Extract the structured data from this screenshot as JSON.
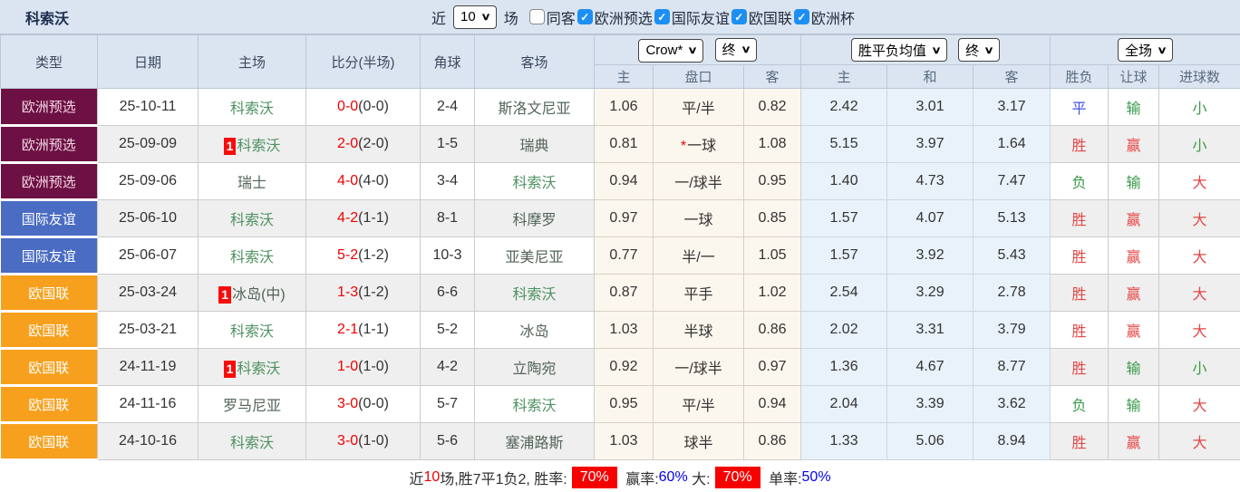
{
  "header": {
    "title": "科索沃",
    "near_label": "近",
    "matches_count": "10",
    "matches_label": "场",
    "checkboxes": [
      {
        "label": "同客",
        "checked": false
      },
      {
        "label": "欧洲预选",
        "checked": true
      },
      {
        "label": "国际友谊",
        "checked": true
      },
      {
        "label": "欧国联",
        "checked": true
      },
      {
        "label": "欧洲杯",
        "checked": true
      }
    ]
  },
  "table": {
    "columns": [
      "类型",
      "日期",
      "主场",
      "比分(半场)",
      "角球",
      "客场"
    ],
    "selects": {
      "company": "Crow*",
      "company_time": "终",
      "avg": "胜平负均值",
      "avg_time": "终",
      "scope": "全场"
    },
    "sub_columns": [
      "主",
      "盘口",
      "客",
      "主",
      "和",
      "客",
      "胜负",
      "让球",
      "进球数"
    ],
    "rows": [
      {
        "type": "欧洲预选",
        "league": "purple",
        "date": "25-10-11",
        "home": "科索沃",
        "home_kosovo": true,
        "home_badge": "",
        "score": "0-0",
        "half": "(0-0)",
        "corners": "2-4",
        "away": "斯洛文尼亚",
        "away_kosovo": false,
        "odds_home": "1.06",
        "handicap": "平/半",
        "handicap_star": false,
        "odds_away": "0.82",
        "avg_home": "2.42",
        "avg_draw": "3.01",
        "avg_away": "3.17",
        "result": "平",
        "result_color": "blue",
        "hresult": "输",
        "hresult_color": "green",
        "goals": "小",
        "goals_color": "green"
      },
      {
        "type": "欧洲预选",
        "league": "purple",
        "date": "25-09-09",
        "home": "科索沃",
        "home_kosovo": true,
        "home_badge": "1",
        "score": "2-0",
        "half": "(2-0)",
        "corners": "1-5",
        "away": "瑞典",
        "away_kosovo": false,
        "odds_home": "0.81",
        "handicap": "一球",
        "handicap_star": true,
        "odds_away": "1.08",
        "avg_home": "5.15",
        "avg_draw": "3.97",
        "avg_away": "1.64",
        "result": "胜",
        "result_color": "red",
        "hresult": "赢",
        "hresult_color": "red",
        "goals": "小",
        "goals_color": "green"
      },
      {
        "type": "欧洲预选",
        "league": "purple",
        "date": "25-09-06",
        "home": "瑞士",
        "home_kosovo": false,
        "home_badge": "",
        "score": "4-0",
        "half": "(4-0)",
        "corners": "3-4",
        "away": "科索沃",
        "away_kosovo": true,
        "odds_home": "0.94",
        "handicap": "一/球半",
        "handicap_star": false,
        "odds_away": "0.95",
        "avg_home": "1.40",
        "avg_draw": "4.73",
        "avg_away": "7.47",
        "result": "负",
        "result_color": "green",
        "hresult": "输",
        "hresult_color": "green",
        "goals": "大",
        "goals_color": "red"
      },
      {
        "type": "国际友谊",
        "league": "blue",
        "date": "25-06-10",
        "home": "科索沃",
        "home_kosovo": true,
        "home_badge": "",
        "score": "4-2",
        "half": "(1-1)",
        "corners": "8-1",
        "away": "科摩罗",
        "away_kosovo": false,
        "odds_home": "0.97",
        "handicap": "一球",
        "handicap_star": false,
        "odds_away": "0.85",
        "avg_home": "1.57",
        "avg_draw": "4.07",
        "avg_away": "5.13",
        "result": "胜",
        "result_color": "red",
        "hresult": "赢",
        "hresult_color": "red",
        "goals": "大",
        "goals_color": "red"
      },
      {
        "type": "国际友谊",
        "league": "blue",
        "date": "25-06-07",
        "home": "科索沃",
        "home_kosovo": true,
        "home_badge": "",
        "score": "5-2",
        "half": "(1-2)",
        "corners": "10-3",
        "away": "亚美尼亚",
        "away_kosovo": false,
        "odds_home": "0.77",
        "handicap": "半/一",
        "handicap_star": false,
        "odds_away": "1.05",
        "avg_home": "1.57",
        "avg_draw": "3.92",
        "avg_away": "5.43",
        "result": "胜",
        "result_color": "red",
        "hresult": "赢",
        "hresult_color": "red",
        "goals": "大",
        "goals_color": "red"
      },
      {
        "type": "欧国联",
        "league": "orange",
        "date": "25-03-24",
        "home": "冰岛(中)",
        "home_kosovo": false,
        "home_badge": "1",
        "score": "1-3",
        "half": "(1-2)",
        "corners": "6-6",
        "away": "科索沃",
        "away_kosovo": true,
        "odds_home": "0.87",
        "handicap": "平手",
        "handicap_star": false,
        "odds_away": "1.02",
        "avg_home": "2.54",
        "avg_draw": "3.29",
        "avg_away": "2.78",
        "result": "胜",
        "result_color": "red",
        "hresult": "赢",
        "hresult_color": "red",
        "goals": "大",
        "goals_color": "red"
      },
      {
        "type": "欧国联",
        "league": "orange",
        "date": "25-03-21",
        "home": "科索沃",
        "home_kosovo": true,
        "home_badge": "",
        "score": "2-1",
        "half": "(1-1)",
        "corners": "5-2",
        "away": "冰岛",
        "away_kosovo": false,
        "odds_home": "1.03",
        "handicap": "半球",
        "handicap_star": false,
        "odds_away": "0.86",
        "avg_home": "2.02",
        "avg_draw": "3.31",
        "avg_away": "3.79",
        "result": "胜",
        "result_color": "red",
        "hresult": "赢",
        "hresult_color": "red",
        "goals": "大",
        "goals_color": "red"
      },
      {
        "type": "欧国联",
        "league": "orange",
        "date": "24-11-19",
        "home": "科索沃",
        "home_kosovo": true,
        "home_badge": "1",
        "score": "1-0",
        "half": "(1-0)",
        "corners": "4-2",
        "away": "立陶宛",
        "away_kosovo": false,
        "odds_home": "0.92",
        "handicap": "一/球半",
        "handicap_star": false,
        "odds_away": "0.97",
        "avg_home": "1.36",
        "avg_draw": "4.67",
        "avg_away": "8.77",
        "result": "胜",
        "result_color": "red",
        "hresult": "输",
        "hresult_color": "green",
        "goals": "小",
        "goals_color": "green"
      },
      {
        "type": "欧国联",
        "league": "orange",
        "date": "24-11-16",
        "home": "罗马尼亚",
        "home_kosovo": false,
        "home_badge": "",
        "score": "3-0",
        "half": "(0-0)",
        "corners": "5-7",
        "away": "科索沃",
        "away_kosovo": true,
        "odds_home": "0.95",
        "handicap": "平/半",
        "handicap_star": false,
        "odds_away": "0.94",
        "avg_home": "2.04",
        "avg_draw": "3.39",
        "avg_away": "3.62",
        "result": "负",
        "result_color": "green",
        "hresult": "输",
        "hresult_color": "green",
        "goals": "大",
        "goals_color": "red"
      },
      {
        "type": "欧国联",
        "league": "orange",
        "date": "24-10-16",
        "home": "科索沃",
        "home_kosovo": true,
        "home_badge": "",
        "score": "3-0",
        "half": "(1-0)",
        "corners": "5-6",
        "away": "塞浦路斯",
        "away_kosovo": false,
        "odds_home": "1.03",
        "handicap": "球半",
        "handicap_star": false,
        "odds_away": "0.86",
        "avg_home": "1.33",
        "avg_draw": "5.06",
        "avg_away": "8.94",
        "result": "胜",
        "result_color": "red",
        "hresult": "赢",
        "hresult_color": "red",
        "goals": "大",
        "goals_color": "red"
      }
    ]
  },
  "summary": {
    "parts": [
      {
        "text": "近",
        "style": "plain-text"
      },
      {
        "text": "10",
        "style": "red-text"
      },
      {
        "text": "场,胜7平1负2, 胜率:",
        "style": "plain-text"
      },
      {
        "text": "70%",
        "style": "red-badge"
      },
      {
        "text": " 赢率:",
        "style": "plain-text"
      },
      {
        "text": "60%",
        "style": "blue-text"
      },
      {
        "text": " 大:",
        "style": "plain-text"
      },
      {
        "text": "70%",
        "style": "red-badge"
      },
      {
        "text": " 单率:",
        "style": "plain-text"
      },
      {
        "text": "50%",
        "style": "blue-text"
      }
    ]
  },
  "colors": {
    "header_bg": "#dbe5f1",
    "league_purple": "#6d1044",
    "league_blue": "#4a6cc2",
    "league_orange": "#f7a01d",
    "kosovo_green": "#4d9160",
    "score_red": "#f20000",
    "win_red": "#e64545",
    "lose_green": "#3a9a4a",
    "draw_blue": "#4253ee",
    "checkbox_blue": "#1d8ff2",
    "odds_bg": "#fcf7ee",
    "avg_bg": "#e9f2fa"
  }
}
